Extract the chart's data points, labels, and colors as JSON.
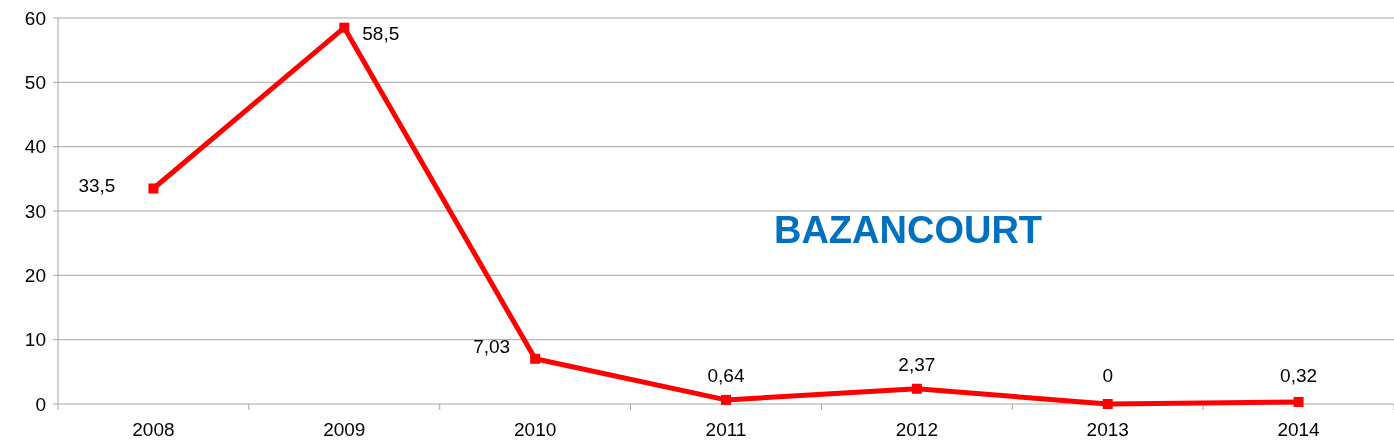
{
  "chart_data": {
    "type": "line",
    "title": "BAZANCOURT",
    "categories": [
      "2008",
      "2009",
      "2010",
      "2011",
      "2012",
      "2013",
      "2014"
    ],
    "series": [
      {
        "color": "#ff0000",
        "values": [
          33.5,
          58.5,
          7.03,
          0.64,
          2.37,
          0,
          0.32
        ],
        "value_labels": [
          "33,5",
          "58,5",
          "7,03",
          "0,64",
          "2,37",
          "0",
          "0,32"
        ]
      }
    ],
    "ylim": [
      0,
      60
    ],
    "yticks": [
      0,
      10,
      20,
      30,
      40,
      50,
      60
    ],
    "grid": "y",
    "marker": "square"
  }
}
